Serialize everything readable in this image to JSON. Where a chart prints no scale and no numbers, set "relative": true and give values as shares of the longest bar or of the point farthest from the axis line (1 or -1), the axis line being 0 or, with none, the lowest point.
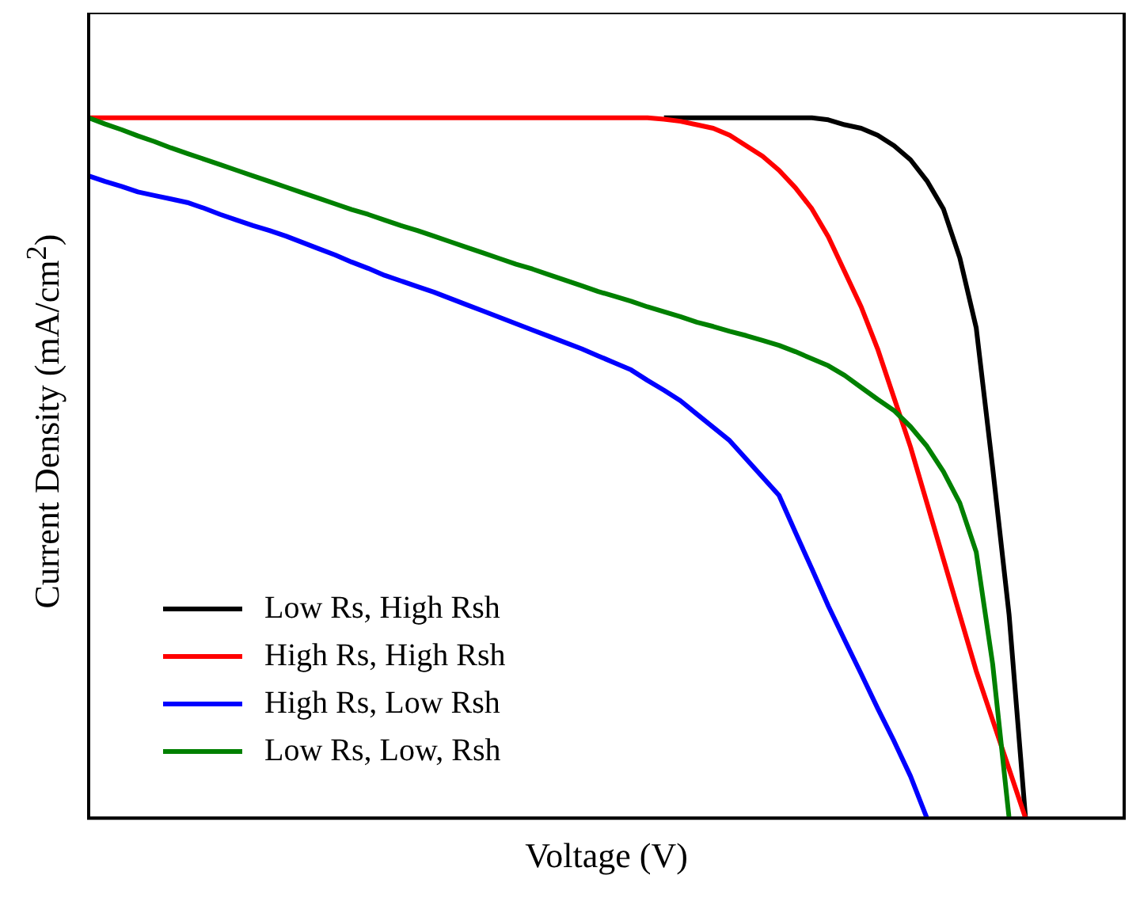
{
  "chart_data": {
    "type": "line",
    "xlabel": "Voltage (V)",
    "ylabel": "Current Density (mA/cm$^{2}$)",
    "relative": true,
    "legend": "bottom left",
    "grid": false,
    "marker": "none",
    "line_style": "solid",
    "categories": [
      null,
      null,
      null,
      null,
      null,
      null,
      null,
      null,
      null,
      null,
      null,
      null,
      null,
      null,
      null,
      null,
      null,
      null,
      null,
      null,
      null,
      null,
      null,
      null,
      null,
      null,
      null,
      null,
      null,
      null,
      null,
      null,
      null,
      null,
      null,
      null,
      null,
      null,
      null,
      null,
      null,
      null,
      null,
      null,
      null,
      null,
      null,
      null,
      null,
      null,
      null,
      null,
      null,
      null,
      null,
      null,
      null,
      null,
      null,
      null,
      null,
      null,
      null,
      null
    ],
    "series": [
      {
        "name": "Low Rs, High Rsh",
        "color": "#000000",
        "values": [
          null,
          null,
          null,
          null,
          null,
          null,
          null,
          null,
          null,
          null,
          null,
          null,
          null,
          null,
          null,
          null,
          null,
          null,
          null,
          null,
          null,
          null,
          null,
          null,
          null,
          null,
          null,
          null,
          null,
          null,
          null,
          null,
          null,
          null,
          null,
          1,
          1,
          1,
          1,
          1,
          1,
          1,
          1,
          1,
          1,
          0.997,
          0.99,
          0.985,
          0.975,
          0.96,
          0.94,
          0.91,
          0.87,
          0.8,
          0.7,
          0.5,
          0.29,
          0,
          null,
          null,
          null,
          null,
          null,
          null
        ]
      },
      {
        "name": "High Rs, High Rsh",
        "color": "#ff0000",
        "values": [
          1,
          1,
          1,
          1,
          1,
          1,
          1,
          1,
          1,
          1,
          1,
          1,
          1,
          1,
          1,
          1,
          1,
          1,
          1,
          1,
          1,
          1,
          1,
          1,
          1,
          1,
          1,
          1,
          1,
          1,
          1,
          1,
          1,
          1,
          1,
          0.998,
          0.995,
          0.99,
          0.985,
          0.975,
          0.96,
          0.945,
          0.925,
          0.9,
          0.87,
          0.83,
          0.78,
          0.73,
          0.67,
          0.6,
          0.53,
          0.45,
          0.37,
          0.29,
          0.21,
          0.14,
          0.07,
          0,
          null,
          null,
          null,
          null,
          null,
          null
        ]
      },
      {
        "name": "High Rs, Low Rsh",
        "color": "#0000ff",
        "values": [
          0.917,
          0.909,
          0.902,
          0.894,
          0.889,
          0.884,
          0.879,
          0.871,
          0.862,
          0.854,
          0.846,
          0.839,
          0.831,
          0.822,
          0.813,
          0.804,
          0.794,
          0.785,
          0.775,
          0.767,
          0.759,
          0.751,
          0.742,
          0.733,
          0.724,
          0.715,
          0.706,
          0.697,
          0.688,
          0.679,
          0.67,
          0.66,
          0.65,
          0.64,
          0.625,
          0.611,
          0.596,
          0.577,
          0.558,
          0.539,
          0.513,
          0.487,
          0.461,
          0.408,
          0.356,
          0.303,
          0.254,
          0.206,
          0.157,
          0.11,
          0.06,
          0,
          null,
          null,
          null,
          null,
          null,
          null,
          null,
          null,
          null,
          null,
          null,
          null
        ]
      },
      {
        "name": "Low Rs, Low, Rsh",
        "color": "#008000",
        "values": [
          1,
          0.991,
          0.983,
          0.974,
          0.966,
          0.957,
          0.949,
          0.941,
          0.933,
          0.925,
          0.917,
          0.909,
          0.901,
          0.893,
          0.885,
          0.877,
          0.869,
          0.862,
          0.854,
          0.846,
          0.839,
          0.831,
          0.823,
          0.815,
          0.807,
          0.799,
          0.791,
          0.784,
          0.776,
          0.768,
          0.76,
          0.752,
          0.745,
          0.738,
          0.73,
          0.723,
          0.716,
          0.708,
          0.702,
          0.695,
          0.689,
          0.682,
          0.675,
          0.666,
          0.656,
          0.646,
          0.632,
          0.615,
          0.598,
          0.582,
          0.559,
          0.531,
          0.495,
          0.45,
          0.38,
          0.22,
          0,
          null,
          null,
          null,
          null,
          null,
          null,
          null
        ]
      }
    ]
  }
}
